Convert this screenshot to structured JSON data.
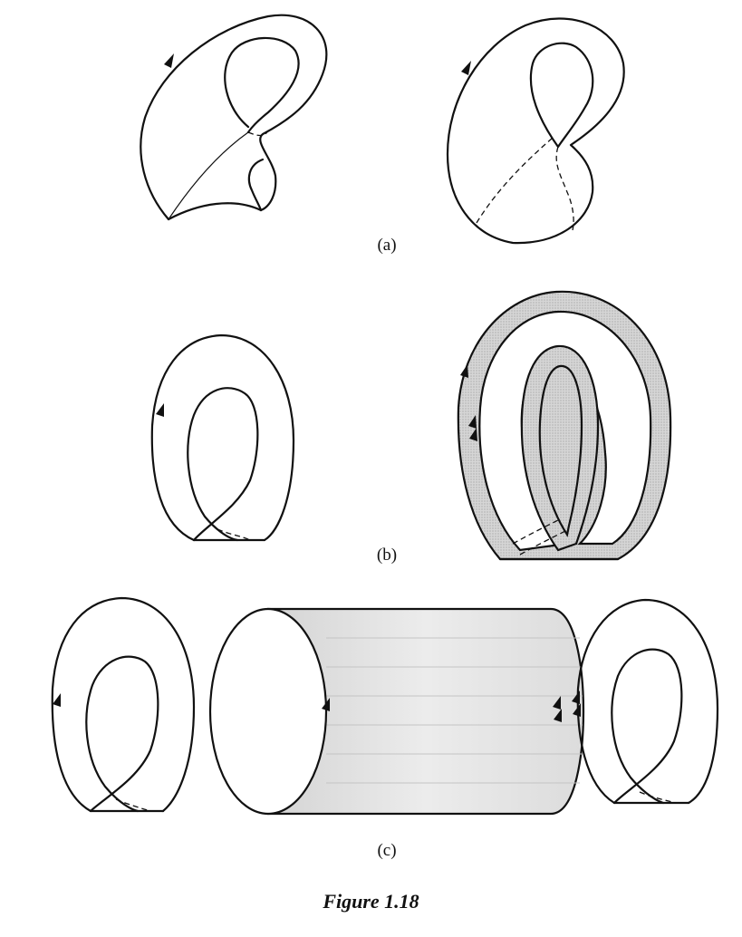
{
  "labels": {
    "a": "(a)",
    "b": "(b)",
    "c": "(c)"
  },
  "caption": "Figure 1.18",
  "colors": {
    "ink": "#111111",
    "band_fill": "#c9c9c9",
    "cylinder_fill": "#e3e3e3"
  }
}
